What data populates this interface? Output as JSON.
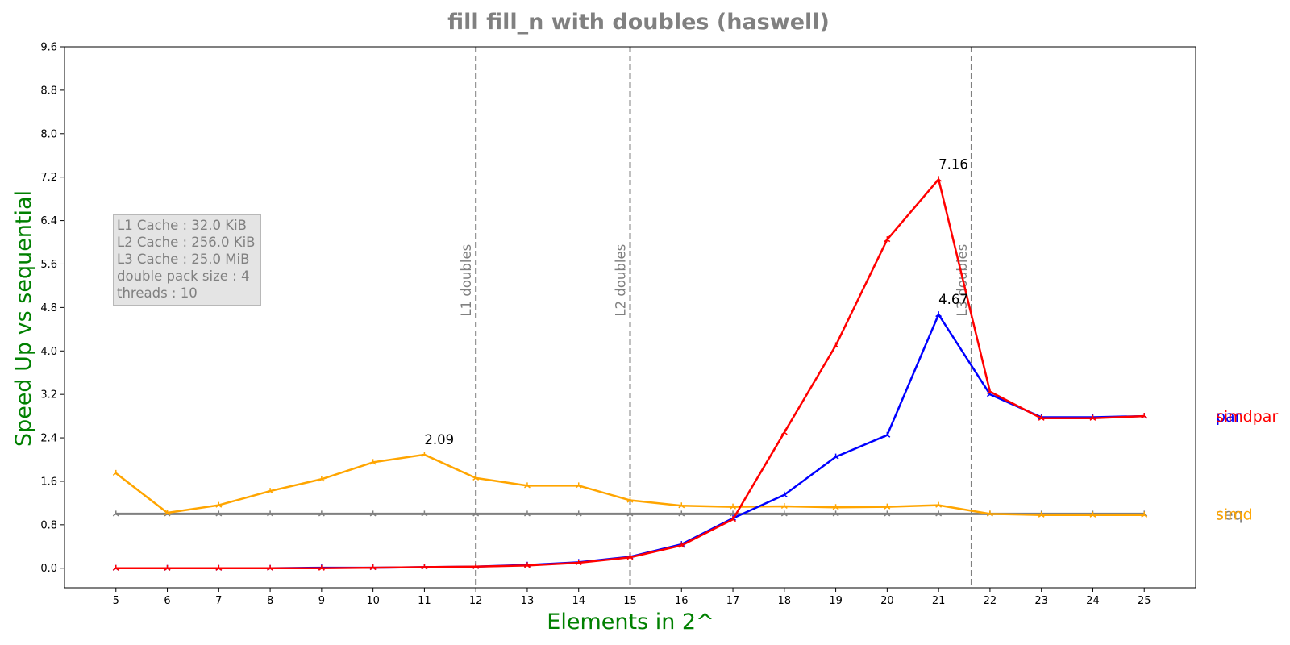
{
  "chart_data": {
    "type": "line",
    "title": "fill fill_n with doubles  (haswell)",
    "xlabel": "Elements in 2^",
    "ylabel": "Speed Up vs sequential",
    "x": [
      5,
      6,
      7,
      8,
      9,
      10,
      11,
      12,
      13,
      14,
      15,
      16,
      17,
      18,
      19,
      20,
      21,
      22,
      23,
      24,
      25
    ],
    "xticks": [
      "5",
      "6",
      "7",
      "8",
      "9",
      "10",
      "11",
      "12",
      "13",
      "14",
      "15",
      "16",
      "17",
      "18",
      "19",
      "20",
      "21",
      "22",
      "23",
      "24",
      "25"
    ],
    "yticks": [
      "0.0",
      "0.8",
      "1.6",
      "2.4",
      "3.2",
      "4.0",
      "4.8",
      "5.6",
      "6.4",
      "7.2",
      "8.0",
      "8.8",
      "9.6"
    ],
    "xlim": [
      4,
      26
    ],
    "ylim": [
      -0.36,
      9.6
    ],
    "grid": false,
    "series": [
      {
        "name": "seq",
        "color": "#808080",
        "values": [
          1.0,
          1.0,
          1.0,
          1.0,
          1.0,
          1.0,
          1.0,
          1.0,
          1.0,
          1.0,
          1.0,
          1.0,
          1.0,
          1.0,
          1.0,
          1.0,
          1.0,
          1.0,
          1.0,
          1.0,
          1.0
        ]
      },
      {
        "name": "simd",
        "color": "#ffa500",
        "values": [
          1.75,
          1.02,
          1.16,
          1.42,
          1.64,
          1.95,
          2.09,
          1.66,
          1.52,
          1.52,
          1.25,
          1.15,
          1.13,
          1.14,
          1.12,
          1.13,
          1.16,
          1.0,
          0.98,
          0.98,
          0.98
        ]
      },
      {
        "name": "par",
        "color": "#0000ff",
        "values": [
          0.0,
          0.0,
          0.0,
          0.0,
          0.01,
          0.01,
          0.02,
          0.03,
          0.06,
          0.11,
          0.21,
          0.44,
          0.92,
          1.35,
          2.05,
          2.45,
          4.67,
          3.2,
          2.78,
          2.78,
          2.8
        ]
      },
      {
        "name": "simdpar",
        "color": "#ff0000",
        "values": [
          0.0,
          0.0,
          0.0,
          0.0,
          0.0,
          0.01,
          0.02,
          0.03,
          0.05,
          0.1,
          0.2,
          0.42,
          0.9,
          2.5,
          4.1,
          6.05,
          7.16,
          3.25,
          2.76,
          2.76,
          2.8
        ]
      }
    ],
    "peak_labels": [
      {
        "x": 11,
        "y": 2.09,
        "text": "2.09"
      },
      {
        "x": 21,
        "y": 4.67,
        "text": "4.67"
      },
      {
        "x": 21,
        "y": 7.16,
        "text": "7.16"
      }
    ],
    "cache_lines": [
      {
        "x": 12,
        "label": "L1 doubles"
      },
      {
        "x": 15,
        "label": "L2 doubles"
      },
      {
        "x": 21.64,
        "label": "L3 doubles"
      }
    ],
    "side_labels": [
      {
        "text": "seq",
        "y": 1.0,
        "color": "#808080"
      },
      {
        "text": "simd",
        "y": 1.0,
        "color": "#ffa500"
      },
      {
        "text": "par",
        "y": 2.8,
        "color": "#0000ff"
      },
      {
        "text": "simdpar",
        "y": 2.8,
        "color": "#ff0000"
      }
    ],
    "info_box": [
      "L1 Cache : 32.0 KiB",
      "L2 Cache : 256.0 KiB",
      "L3 Cache : 25.0 MiB",
      "double pack size : 4",
      "threads : 10"
    ]
  }
}
